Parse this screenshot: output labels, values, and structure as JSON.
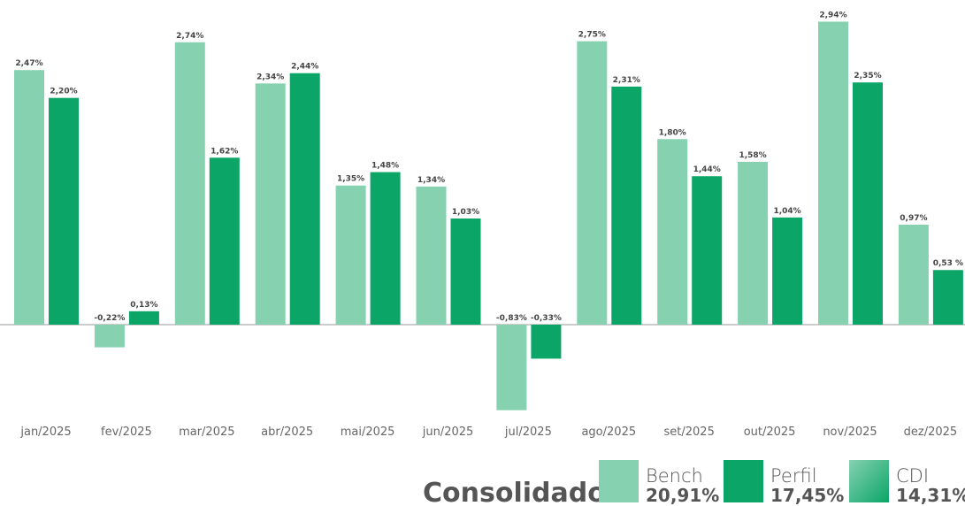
{
  "chart_data": {
    "type": "bar",
    "categories": [
      "jan/2025",
      "fev/2025",
      "mar/2025",
      "abr/2025",
      "mai/2025",
      "jun/2025",
      "jul/2025",
      "ago/2025",
      "set/2025",
      "out/2025",
      "nov/2025",
      "dez/2025"
    ],
    "series": [
      {
        "name": "Bench",
        "color": "#85d1b0",
        "values": [
          2.47,
          -0.22,
          2.74,
          2.34,
          1.35,
          1.34,
          -0.83,
          2.75,
          1.8,
          1.58,
          2.94,
          0.97
        ],
        "value_labels": [
          "2,47%",
          "-0,22%",
          "2,74%",
          "2,34%",
          "1,35%",
          "1,34%",
          "-0,83%",
          "2,75%",
          "1,80%",
          "1,58%",
          "2,94%",
          "0,97%"
        ],
        "total": 20.91,
        "total_label": "20,91%"
      },
      {
        "name": "Perfil",
        "color": "#0aa567",
        "values": [
          2.2,
          0.13,
          1.62,
          2.44,
          1.48,
          1.03,
          -0.33,
          2.31,
          1.44,
          1.04,
          2.35,
          0.53
        ],
        "value_labels": [
          "2,20%",
          "0,13%",
          "1,62%",
          "2,44%",
          "1,48%",
          "1,03%",
          "-0,33%",
          "2,31%",
          "1,44%",
          "1,04%",
          "2,35%",
          "0,53 %"
        ],
        "total": 17.45,
        "total_label": "17,45%"
      }
    ],
    "legend_extra": [
      {
        "name": "CDI",
        "colors": [
          "#85d1b0",
          "#0aa567"
        ],
        "total": 14.31,
        "total_label": "14,31%"
      }
    ],
    "legend_title": "Consolidado",
    "ylim": [
      -1,
      3.15
    ]
  }
}
